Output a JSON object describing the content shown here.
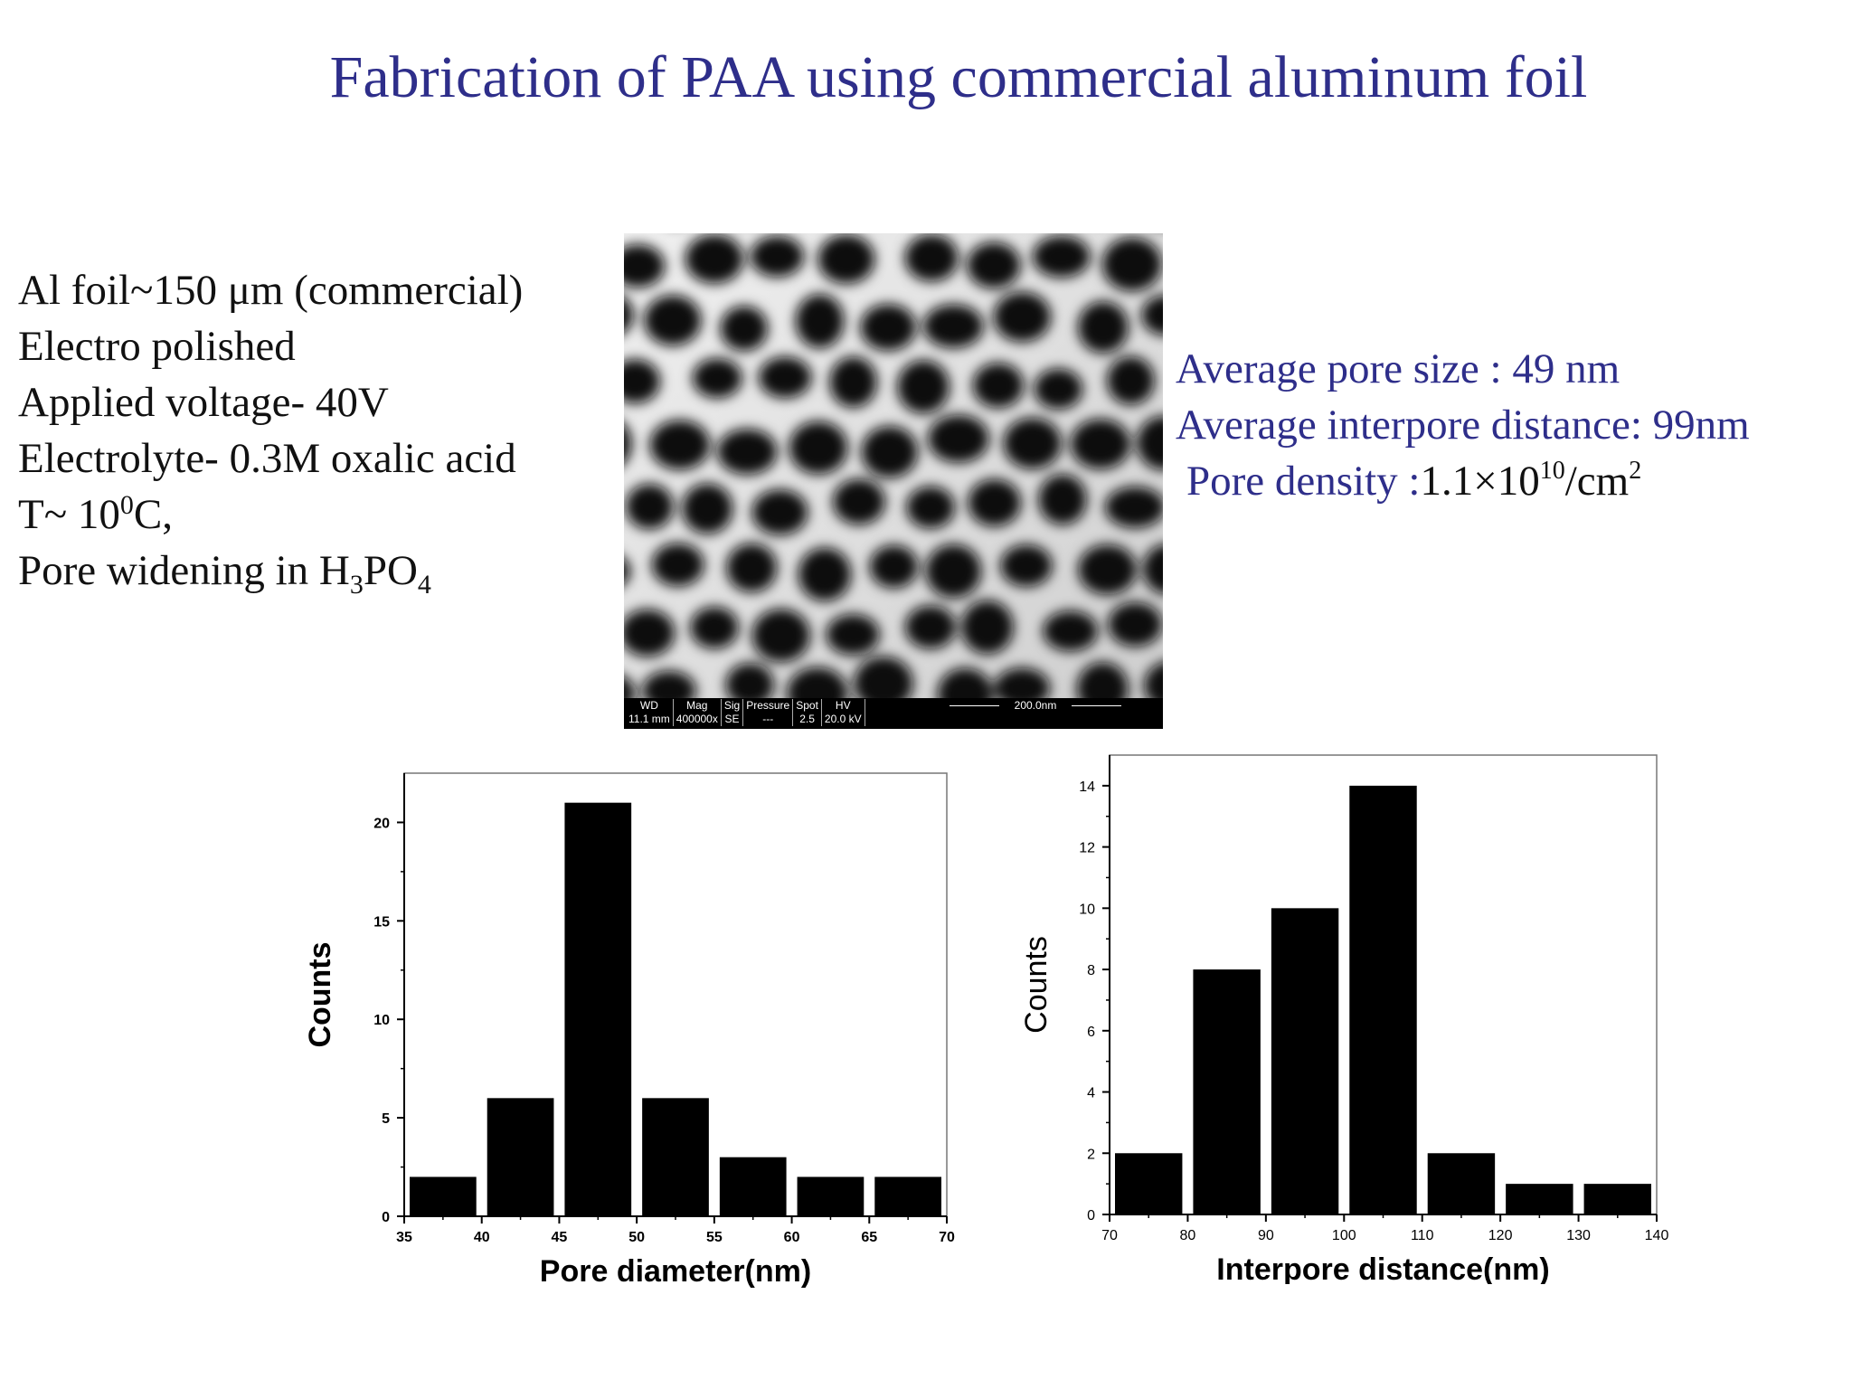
{
  "title": "Fabrication of PAA using commercial aluminum foil",
  "params": {
    "foil": "Al foil~150  μm (commercial)",
    "polish": "Electro polished",
    "voltage": "Applied voltage- 40V",
    "electrolyte": "Electrolyte- 0.3M oxalic acid",
    "temp_prefix": "T~ 10",
    "temp_sup": "0",
    "temp_suffix": "C,",
    "widening_prefix": "Pore widening  in H",
    "widening_sub1": "3",
    "widening_mid": "PO",
    "widening_sub2": "4"
  },
  "stats": {
    "pore_size": "Average pore size : 49 nm",
    "interpore": "Average interpore distance: 99nm",
    "density_label": "Pore density :",
    "density_value": "1.1×10",
    "density_exp": "10",
    "density_unit": "/cm",
    "density_unit_exp": "2"
  },
  "sem": {
    "headers": [
      "WD",
      "Mag",
      "Sig",
      "Pressure",
      "Spot",
      "HV"
    ],
    "values": [
      "11.1 mm",
      "400000x",
      "SE",
      "---",
      "2.5",
      "20.0 kV"
    ],
    "scale": "200.0nm"
  },
  "chart_data": [
    {
      "type": "bar",
      "xlabel": "Pore diameter(nm)",
      "ylabel": "Counts",
      "xlim": [
        35,
        70
      ],
      "ylim": [
        0,
        22.5
      ],
      "xticks": [
        35,
        40,
        45,
        50,
        55,
        60,
        65,
        70
      ],
      "yticks": [
        0,
        5,
        10,
        15,
        20
      ],
      "bins": [
        [
          35,
          40
        ],
        [
          40,
          45
        ],
        [
          45,
          50
        ],
        [
          50,
          55
        ],
        [
          55,
          60
        ],
        [
          60,
          65
        ],
        [
          65,
          70
        ]
      ],
      "values": [
        2,
        6,
        21,
        6,
        3,
        2,
        2
      ]
    },
    {
      "type": "bar",
      "xlabel": "Interpore distance(nm)",
      "ylabel": "Counts",
      "xlim": [
        70,
        140
      ],
      "ylim": [
        0,
        15
      ],
      "xticks": [
        70,
        80,
        90,
        100,
        110,
        120,
        130,
        140
      ],
      "yticks": [
        0,
        2,
        4,
        6,
        8,
        10,
        12,
        14
      ],
      "bins": [
        [
          70,
          80
        ],
        [
          80,
          90
        ],
        [
          90,
          100
        ],
        [
          100,
          110
        ],
        [
          110,
          120
        ],
        [
          120,
          130
        ],
        [
          130,
          140
        ]
      ],
      "values": [
        2,
        8,
        10,
        14,
        2,
        1,
        1
      ]
    }
  ]
}
